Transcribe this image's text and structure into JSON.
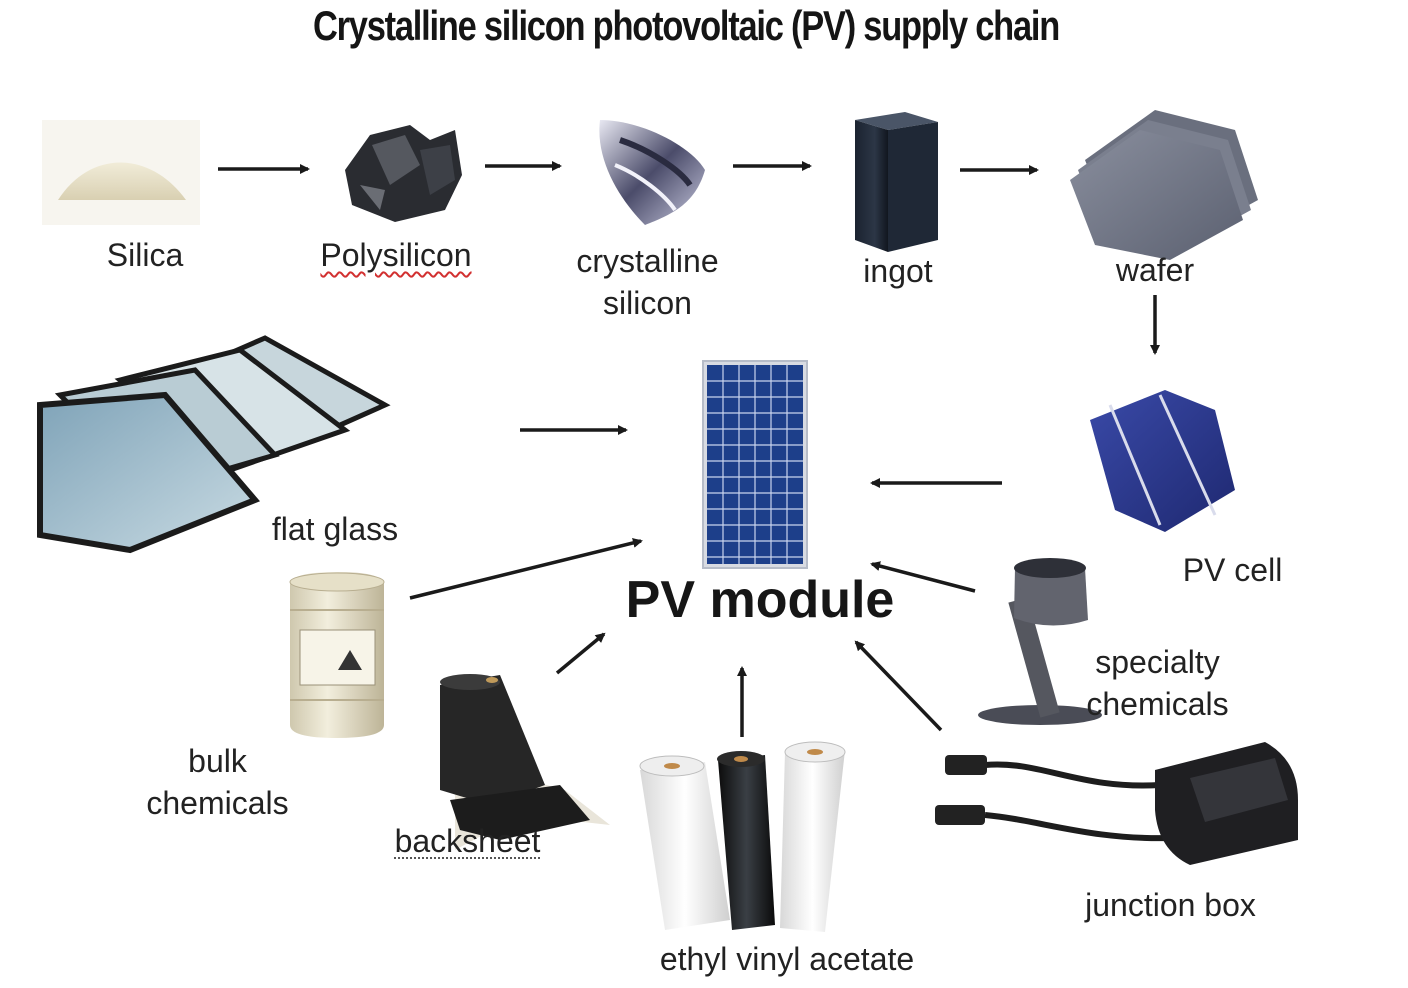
{
  "title": "Crystalline silicon photovoltaic (PV) supply chain",
  "center": {
    "label": "PV module"
  },
  "nodes": {
    "silica": "Silica",
    "polysilicon": "Polysilicon",
    "crystalline_silicon": [
      "crystalline",
      "silicon"
    ],
    "ingot": "ingot",
    "wafer": "wafer",
    "pv_cell": "PV cell",
    "flat_glass": "flat glass",
    "bulk_chemicals": [
      "bulk",
      "chemicals"
    ],
    "backsheet": "backsheet",
    "eva": "ethyl vinyl acetate",
    "specialty_chemicals": [
      "specialty",
      "chemicals"
    ],
    "junction_box": "junction box"
  },
  "colors": {
    "arrow": "#1a1a1a",
    "panel_cell": "#1d3f8a",
    "pv_cell": "#2b3a8f",
    "silica": "#e6dfc6",
    "glass": "#a9c4cf"
  },
  "icons": [
    "silica-sand-icon",
    "polysilicon-chunks-icon",
    "crystalline-silicon-icon",
    "ingot-block-icon",
    "wafer-stack-icon",
    "pv-cell-icon",
    "glass-panes-icon",
    "chemical-drum-icon",
    "backsheet-roll-icon",
    "eva-rolls-icon",
    "paint-pour-icon",
    "junction-box-icon",
    "solar-panel-icon"
  ]
}
